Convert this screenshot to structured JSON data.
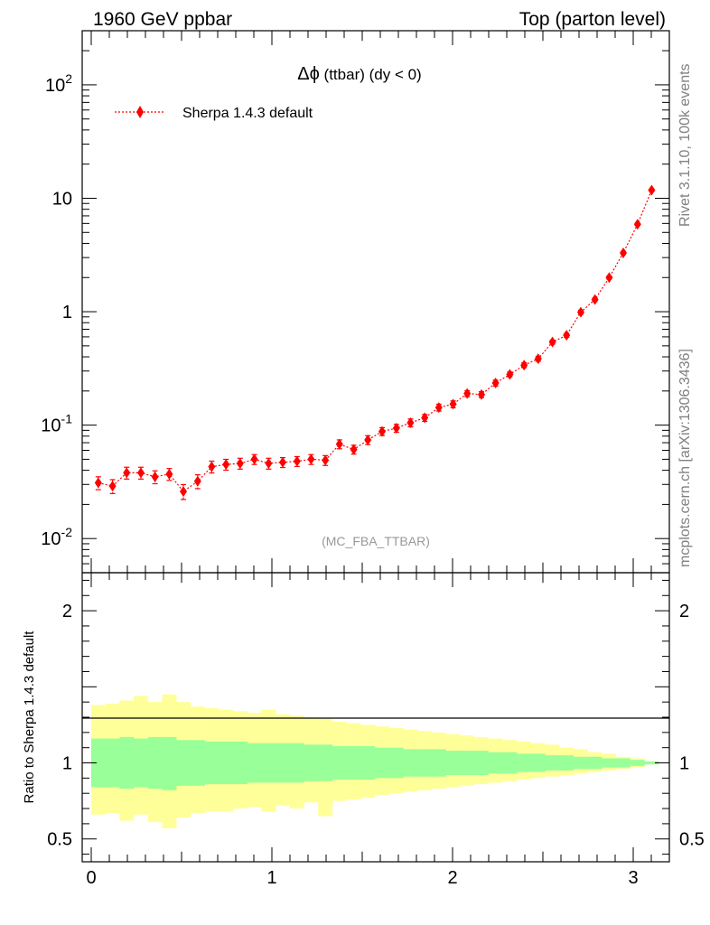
{
  "header": {
    "left": "1960 GeV ppbar",
    "right": "Top (parton level)"
  },
  "side_labels": {
    "rivet": "Rivet 3.1.10,  100k events",
    "mcplots": "mcplots.cern.ch [arXiv:1306.3436]"
  },
  "analysis_tag": "(MC_FBA_TTBAR)",
  "chart_data": [
    {
      "type": "scatter",
      "title": "Δϕ (ttbar) (dy < 0)",
      "title_parts": {
        "symbol": "Δϕ",
        "rest": " (ttbar) (dy < 0)"
      },
      "xlabel": "",
      "ylabel": "",
      "y_scale": "log",
      "xlim": [
        -0.05,
        3.2
      ],
      "ylim": [
        0.005,
        300
      ],
      "y_tick_labels": [
        "10^-2",
        "10^-1",
        "1",
        "10",
        "10^2"
      ],
      "legend": {
        "placement": "top-left",
        "entries": [
          "Sherpa 1.4.3 default"
        ]
      },
      "series": [
        {
          "name": "Sherpa 1.4.3 default",
          "color": "#ff0000",
          "marker": "diamond",
          "line": "dotted",
          "x": [
            0.039,
            0.118,
            0.196,
            0.275,
            0.353,
            0.432,
            0.51,
            0.589,
            0.667,
            0.746,
            0.824,
            0.903,
            0.982,
            1.06,
            1.139,
            1.217,
            1.296,
            1.374,
            1.453,
            1.531,
            1.61,
            1.689,
            1.767,
            1.846,
            1.924,
            2.003,
            2.081,
            2.16,
            2.238,
            2.317,
            2.396,
            2.474,
            2.553,
            2.631,
            2.71,
            2.788,
            2.867,
            2.945,
            3.024,
            3.102
          ],
          "y": [
            0.031,
            0.029,
            0.038,
            0.038,
            0.035,
            0.037,
            0.026,
            0.032,
            0.043,
            0.045,
            0.046,
            0.05,
            0.046,
            0.047,
            0.048,
            0.05,
            0.049,
            0.068,
            0.061,
            0.074,
            0.088,
            0.094,
            0.105,
            0.116,
            0.143,
            0.153,
            0.19,
            0.186,
            0.235,
            0.28,
            0.338,
            0.385,
            0.54,
            0.62,
            0.99,
            1.28,
            2.0,
            3.3,
            5.9,
            11.8
          ],
          "y_err_frac": [
            0.13,
            0.14,
            0.12,
            0.12,
            0.13,
            0.12,
            0.15,
            0.14,
            0.12,
            0.11,
            0.11,
            0.1,
            0.11,
            0.1,
            0.1,
            0.1,
            0.1,
            0.09,
            0.09,
            0.09,
            0.08,
            0.08,
            0.08,
            0.07,
            0.07,
            0.07,
            0.06,
            0.06,
            0.06,
            0.05,
            0.05,
            0.05,
            0.04,
            0.04,
            0.04,
            0.03,
            0.03,
            0.03,
            0.02,
            0.02
          ]
        }
      ]
    },
    {
      "type": "area",
      "ylabel": "Ratio to Sherpa 1.4.3 default",
      "xlabel": "",
      "xlim": [
        -0.05,
        3.2
      ],
      "ylim": [
        0.35,
        2.25
      ],
      "x_ticks": [
        0,
        1,
        2,
        3
      ],
      "y_ticks": [
        0.5,
        1,
        2
      ],
      "reference_line": 1,
      "band_inner_color": "#99ff99",
      "band_outer_color": "#ffff99",
      "bin_width": 0.0785,
      "x_bin_starts": [
        0.0,
        0.0785,
        0.157,
        0.2355,
        0.314,
        0.3925,
        0.471,
        0.5495,
        0.628,
        0.7065,
        0.785,
        0.8635,
        0.942,
        1.0205,
        1.099,
        1.1775,
        1.256,
        1.3345,
        1.413,
        1.4915,
        1.57,
        1.6485,
        1.727,
        1.8055,
        1.884,
        1.9625,
        2.041,
        2.1195,
        2.198,
        2.2765,
        2.355,
        2.4335,
        2.512,
        2.5905,
        2.669,
        2.7475,
        2.826,
        2.9045,
        2.983,
        3.0615
      ],
      "outer_upper": [
        1.38,
        1.39,
        1.41,
        1.44,
        1.4,
        1.45,
        1.4,
        1.37,
        1.36,
        1.35,
        1.34,
        1.33,
        1.35,
        1.32,
        1.31,
        1.3,
        1.29,
        1.27,
        1.26,
        1.25,
        1.24,
        1.23,
        1.22,
        1.21,
        1.2,
        1.19,
        1.18,
        1.17,
        1.16,
        1.15,
        1.14,
        1.13,
        1.12,
        1.1,
        1.09,
        1.07,
        1.06,
        1.04,
        1.03,
        1.01
      ],
      "outer_lower": [
        0.66,
        0.67,
        0.62,
        0.66,
        0.61,
        0.57,
        0.64,
        0.67,
        0.68,
        0.68,
        0.7,
        0.71,
        0.68,
        0.72,
        0.7,
        0.74,
        0.65,
        0.75,
        0.76,
        0.77,
        0.79,
        0.8,
        0.81,
        0.82,
        0.83,
        0.84,
        0.85,
        0.86,
        0.87,
        0.88,
        0.89,
        0.9,
        0.91,
        0.92,
        0.93,
        0.94,
        0.95,
        0.96,
        0.97,
        0.99
      ],
      "inner_upper": [
        1.16,
        1.16,
        1.17,
        1.16,
        1.17,
        1.17,
        1.15,
        1.15,
        1.14,
        1.14,
        1.14,
        1.13,
        1.13,
        1.13,
        1.13,
        1.12,
        1.12,
        1.11,
        1.11,
        1.11,
        1.1,
        1.1,
        1.09,
        1.09,
        1.09,
        1.08,
        1.08,
        1.08,
        1.07,
        1.07,
        1.06,
        1.06,
        1.05,
        1.05,
        1.04,
        1.04,
        1.03,
        1.03,
        1.02,
        1.01
      ],
      "inner_lower": [
        0.84,
        0.84,
        0.83,
        0.84,
        0.83,
        0.82,
        0.85,
        0.85,
        0.86,
        0.86,
        0.86,
        0.87,
        0.87,
        0.87,
        0.87,
        0.88,
        0.88,
        0.89,
        0.89,
        0.89,
        0.9,
        0.9,
        0.91,
        0.91,
        0.91,
        0.92,
        0.92,
        0.92,
        0.93,
        0.93,
        0.94,
        0.94,
        0.95,
        0.95,
        0.96,
        0.96,
        0.97,
        0.97,
        0.98,
        0.99
      ]
    }
  ]
}
